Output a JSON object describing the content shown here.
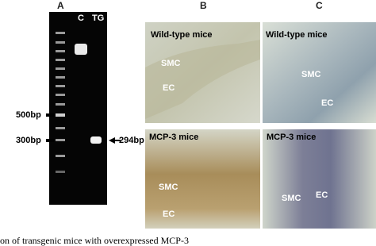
{
  "panel_a": {
    "label": "A",
    "lanes": [
      "C",
      "TG"
    ],
    "markers": [
      "500bp",
      "300bp"
    ],
    "band_label": "294bp"
  },
  "panels": [
    {
      "label": "B",
      "images": [
        {
          "title": "Wild-type mice",
          "labels": [
            "SMC",
            "EC"
          ]
        },
        {
          "title": "MCP-3 mice",
          "labels": [
            "SMC",
            "EC"
          ]
        }
      ]
    },
    {
      "label": "C",
      "images": [
        {
          "title": "Wild-type mice",
          "labels": [
            "SMC",
            "EC"
          ]
        },
        {
          "title": "MCP-3 mice",
          "labels": [
            "SMC",
            "EC"
          ]
        }
      ]
    }
  ],
  "caption": "on of transgenic mice with overexpressed MCP-3"
}
